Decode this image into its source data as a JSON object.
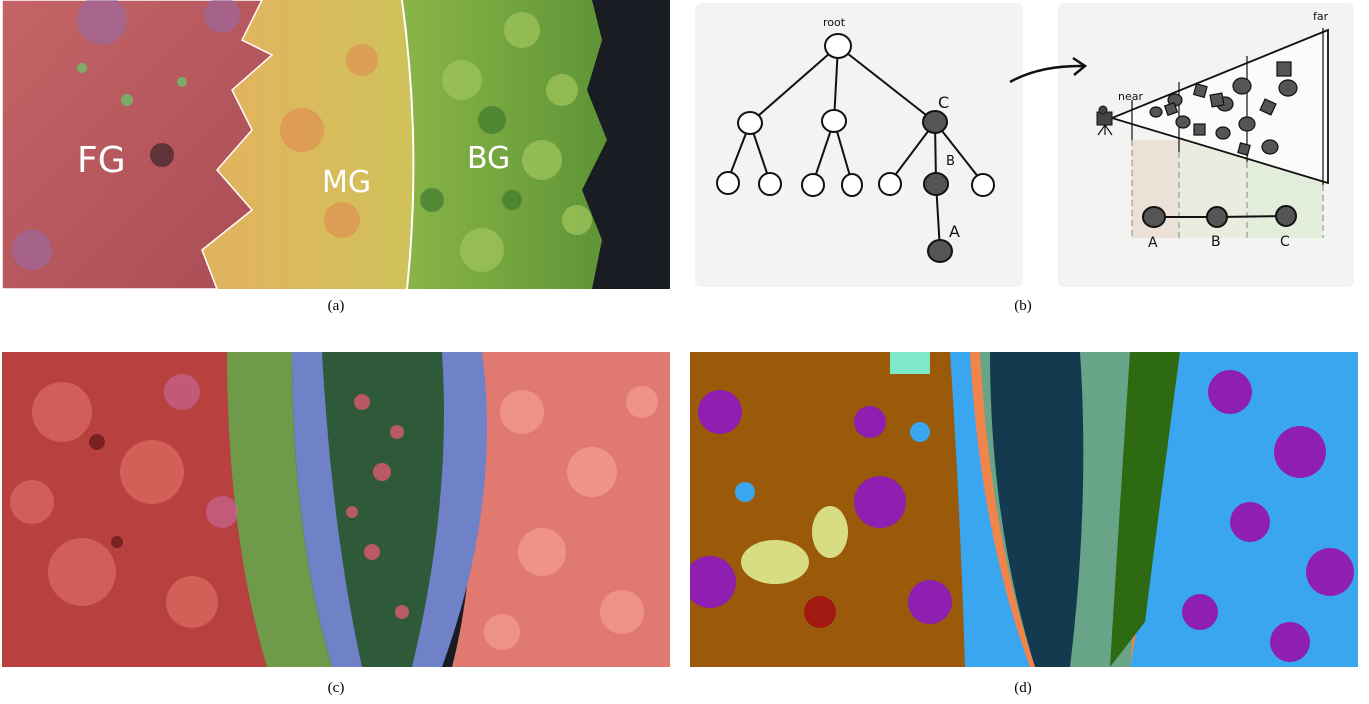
{
  "figure": {
    "panels": [
      {
        "id": "a",
        "caption": "(a)",
        "labels": [
          "FG",
          "MG",
          "BG"
        ]
      },
      {
        "id": "b",
        "caption": "(b)",
        "tree_labels": {
          "root": "root",
          "c": "C",
          "b": "B",
          "a": "A"
        },
        "frustum_labels": {
          "near": "near",
          "far": "far",
          "a": "A",
          "b": "B",
          "c": "C"
        }
      },
      {
        "id": "c",
        "caption": "(c)"
      },
      {
        "id": "d",
        "caption": "(d)"
      }
    ],
    "colors": {
      "fg": "#b9575a",
      "mg": "#d6a44c",
      "bg": "#7aa43a",
      "dark": "#1a1c24",
      "sketch_bg": "#f3f3f1",
      "node_dark": "#555555"
    }
  }
}
